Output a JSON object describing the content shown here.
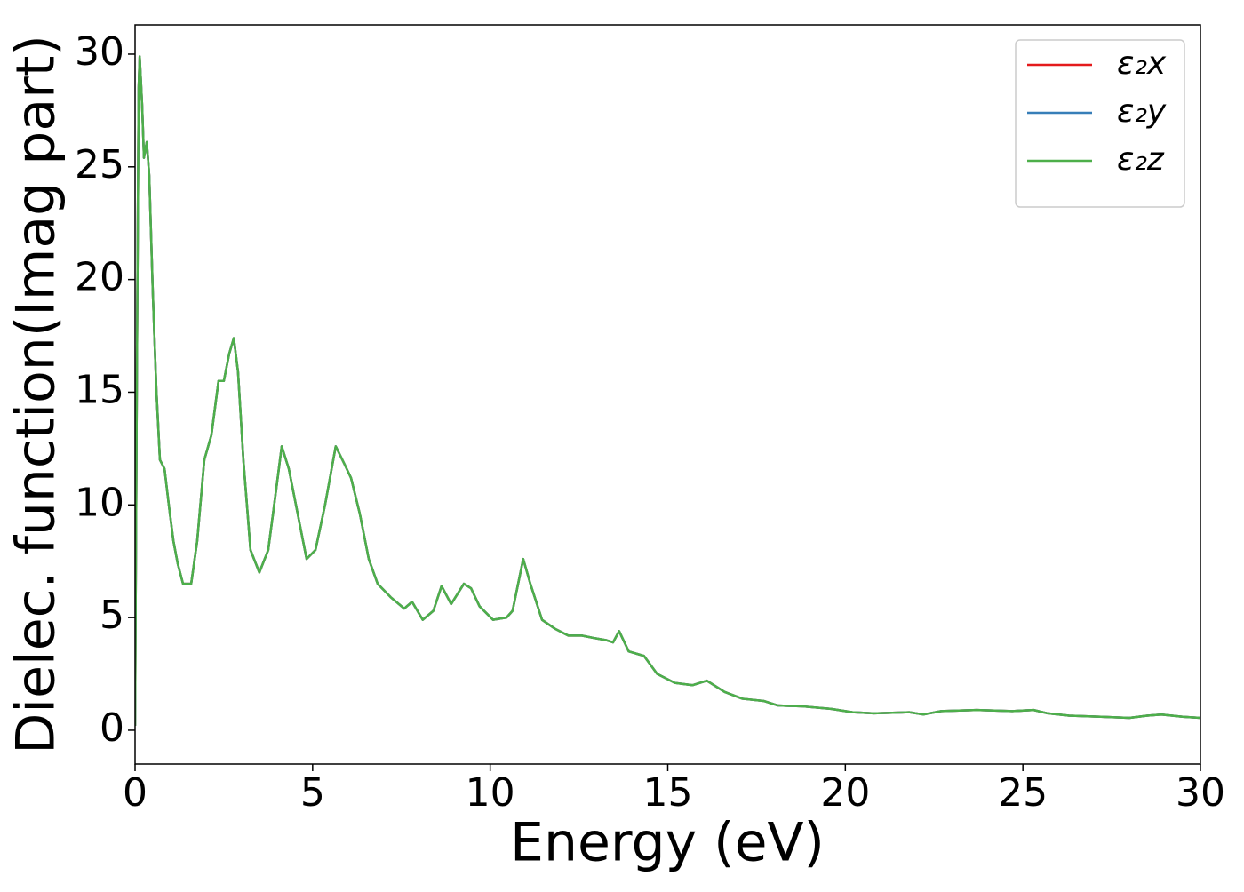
{
  "chart_data": {
    "type": "line",
    "xlabel": "Energy (eV)",
    "ylabel": "Dielec. function(Imag part)",
    "x": [
      0,
      0.05,
      0.1,
      0.13,
      0.2,
      0.25,
      0.33,
      0.4,
      0.5,
      0.6,
      0.7,
      0.83,
      0.95,
      1.08,
      1.2,
      1.35,
      1.58,
      1.75,
      1.95,
      2.15,
      2.35,
      2.5,
      2.65,
      2.78,
      2.9,
      3.05,
      3.25,
      3.5,
      3.75,
      3.95,
      4.13,
      4.33,
      4.58,
      4.83,
      5.08,
      5.35,
      5.65,
      5.9,
      6.08,
      6.33,
      6.58,
      6.83,
      7.2,
      7.58,
      7.8,
      8.1,
      8.4,
      8.63,
      8.9,
      9.26,
      9.46,
      9.7,
      10.08,
      10.46,
      10.63,
      10.93,
      11.13,
      11.46,
      11.83,
      12.2,
      12.58,
      12.9,
      13.26,
      13.46,
      13.63,
      13.9,
      14.33,
      14.7,
      15.2,
      15.7,
      16.1,
      16.6,
      17.1,
      17.7,
      18.1,
      18.8,
      19.6,
      20.2,
      20.8,
      21.8,
      22.2,
      22.7,
      23.7,
      24.7,
      25.3,
      25.7,
      26.3,
      27.2,
      28.0,
      28.5,
      28.9,
      29.5,
      30
    ],
    "series": [
      {
        "name": "ε₂x",
        "color": "#e41a1c",
        "values": [
          0.2,
          15.5,
          28.5,
          29.9,
          27.7,
          25.4,
          26.1,
          24.6,
          19.4,
          15.1,
          12,
          11.6,
          10,
          8.4,
          7.4,
          6.5,
          6.5,
          8.4,
          12,
          13.1,
          15.5,
          15.5,
          16.7,
          17.4,
          15.9,
          12,
          8,
          7,
          8,
          10.4,
          12.6,
          11.6,
          9.6,
          7.6,
          8,
          10,
          12.6,
          11.8,
          11.2,
          9.6,
          7.6,
          6.5,
          5.9,
          5.4,
          5.7,
          4.9,
          5.3,
          6.4,
          5.6,
          6.5,
          6.3,
          5.5,
          4.9,
          5,
          5.3,
          7.6,
          6.5,
          4.9,
          4.5,
          4.2,
          4.2,
          4.1,
          4.0,
          3.9,
          4.4,
          3.5,
          3.3,
          2.5,
          2.1,
          2.0,
          2.2,
          1.7,
          1.4,
          1.3,
          1.1,
          1.06,
          0.95,
          0.8,
          0.75,
          0.8,
          0.7,
          0.85,
          0.9,
          0.85,
          0.9,
          0.75,
          0.65,
          0.6,
          0.55,
          0.65,
          0.7,
          0.6,
          0.55
        ]
      },
      {
        "name": "ε₂y",
        "color": "#377eb8",
        "values": [
          0.2,
          15.5,
          28.5,
          29.9,
          27.7,
          25.4,
          26.1,
          24.6,
          19.4,
          15.1,
          12,
          11.6,
          10,
          8.4,
          7.4,
          6.5,
          6.5,
          8.4,
          12,
          13.1,
          15.5,
          15.5,
          16.7,
          17.4,
          15.9,
          12,
          8,
          7,
          8,
          10.4,
          12.6,
          11.6,
          9.6,
          7.6,
          8,
          10,
          12.6,
          11.8,
          11.2,
          9.6,
          7.6,
          6.5,
          5.9,
          5.4,
          5.7,
          4.9,
          5.3,
          6.4,
          5.6,
          6.5,
          6.3,
          5.5,
          4.9,
          5,
          5.3,
          7.6,
          6.5,
          4.9,
          4.5,
          4.2,
          4.2,
          4.1,
          4.0,
          3.9,
          4.4,
          3.5,
          3.3,
          2.5,
          2.1,
          2.0,
          2.2,
          1.7,
          1.4,
          1.3,
          1.1,
          1.06,
          0.95,
          0.8,
          0.75,
          0.8,
          0.7,
          0.85,
          0.9,
          0.85,
          0.9,
          0.75,
          0.65,
          0.6,
          0.55,
          0.65,
          0.7,
          0.6,
          0.55
        ]
      },
      {
        "name": "ε₂z",
        "color": "#4daf4a",
        "values": [
          0.2,
          15.5,
          28.5,
          29.9,
          27.7,
          25.4,
          26.1,
          24.6,
          19.4,
          15.1,
          12,
          11.6,
          10,
          8.4,
          7.4,
          6.5,
          6.5,
          8.4,
          12,
          13.1,
          15.5,
          15.5,
          16.7,
          17.4,
          15.9,
          12,
          8,
          7,
          8,
          10.4,
          12.6,
          11.6,
          9.6,
          7.6,
          8,
          10,
          12.6,
          11.8,
          11.2,
          9.6,
          7.6,
          6.5,
          5.9,
          5.4,
          5.7,
          4.9,
          5.3,
          6.4,
          5.6,
          6.5,
          6.3,
          5.5,
          4.9,
          5,
          5.3,
          7.6,
          6.5,
          4.9,
          4.5,
          4.2,
          4.2,
          4.1,
          4.0,
          3.9,
          4.4,
          3.5,
          3.3,
          2.5,
          2.1,
          2.0,
          2.2,
          1.7,
          1.4,
          1.3,
          1.1,
          1.06,
          0.95,
          0.8,
          0.75,
          0.8,
          0.7,
          0.85,
          0.9,
          0.85,
          0.9,
          0.75,
          0.65,
          0.6,
          0.55,
          0.65,
          0.7,
          0.6,
          0.55
        ]
      }
    ],
    "xlim": [
      0,
      30
    ],
    "xticks": [
      0,
      5,
      10,
      15,
      20,
      25,
      30
    ],
    "ylim": [
      -1.5,
      31.3
    ],
    "yticks": [
      0,
      5,
      10,
      15,
      20,
      25,
      30
    ],
    "legend": "upper right",
    "grid": false
  }
}
